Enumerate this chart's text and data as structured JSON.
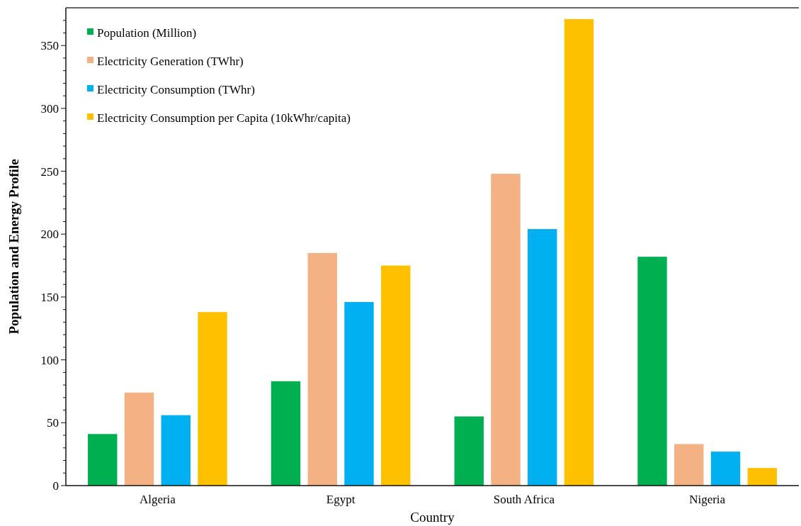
{
  "chart_data": {
    "type": "bar",
    "xlabel": "Country",
    "ylabel": "Population and Energy Profile",
    "categories": [
      "Algeria",
      "Egypt",
      "South Africa",
      "Nigeria"
    ],
    "series": [
      {
        "name": "Population (Million)",
        "color": "#00b050",
        "values": [
          41,
          83,
          55,
          182
        ]
      },
      {
        "name": "Electricity Generation (TWhr)",
        "color": "#f4b183",
        "values": [
          74,
          185,
          248,
          33
        ]
      },
      {
        "name": "Electricity Consumption (TWhr)",
        "color": "#00b0f0",
        "values": [
          56,
          146,
          204,
          27
        ]
      },
      {
        "name": "Electricity Consumption per Capita (10kWhr/capita)",
        "color": "#ffc000",
        "values": [
          138,
          175,
          371,
          14
        ]
      }
    ],
    "ylim": [
      0,
      380
    ],
    "yticks": [
      0,
      {
        "value": 10,
        "label": null
      },
      {
        "value": 20,
        "label": null
      },
      {
        "value": 30,
        "label": null
      },
      {
        "value": 40,
        "label": null
      },
      50,
      {
        "value": 60,
        "label": null
      },
      {
        "value": 70,
        "label": null
      },
      {
        "value": 80,
        "label": null
      },
      {
        "value": 90,
        "label": null
      },
      100,
      {
        "value": 110,
        "label": null
      },
      {
        "value": 120,
        "label": null
      },
      {
        "value": 130,
        "label": null
      },
      {
        "value": 140,
        "label": null
      },
      150,
      {
        "value": 160,
        "label": null
      },
      {
        "value": 170,
        "label": null
      },
      {
        "value": 180,
        "label": null
      },
      {
        "value": 190,
        "label": null
      },
      200,
      {
        "value": 210,
        "label": null
      },
      {
        "value": 220,
        "label": null
      },
      {
        "value": 230,
        "label": null
      },
      {
        "value": 240,
        "label": null
      },
      250,
      {
        "value": 260,
        "label": null
      },
      {
        "value": 270,
        "label": null
      },
      {
        "value": 280,
        "label": null
      },
      {
        "value": 290,
        "label": null
      },
      300,
      {
        "value": 310,
        "label": null
      },
      {
        "value": 320,
        "label": null
      },
      {
        "value": 330,
        "label": null
      },
      {
        "value": 340,
        "label": null
      },
      350,
      {
        "value": 360,
        "label": null
      },
      {
        "value": 370,
        "label": null
      }
    ],
    "legend": "top left",
    "grid": false
  }
}
